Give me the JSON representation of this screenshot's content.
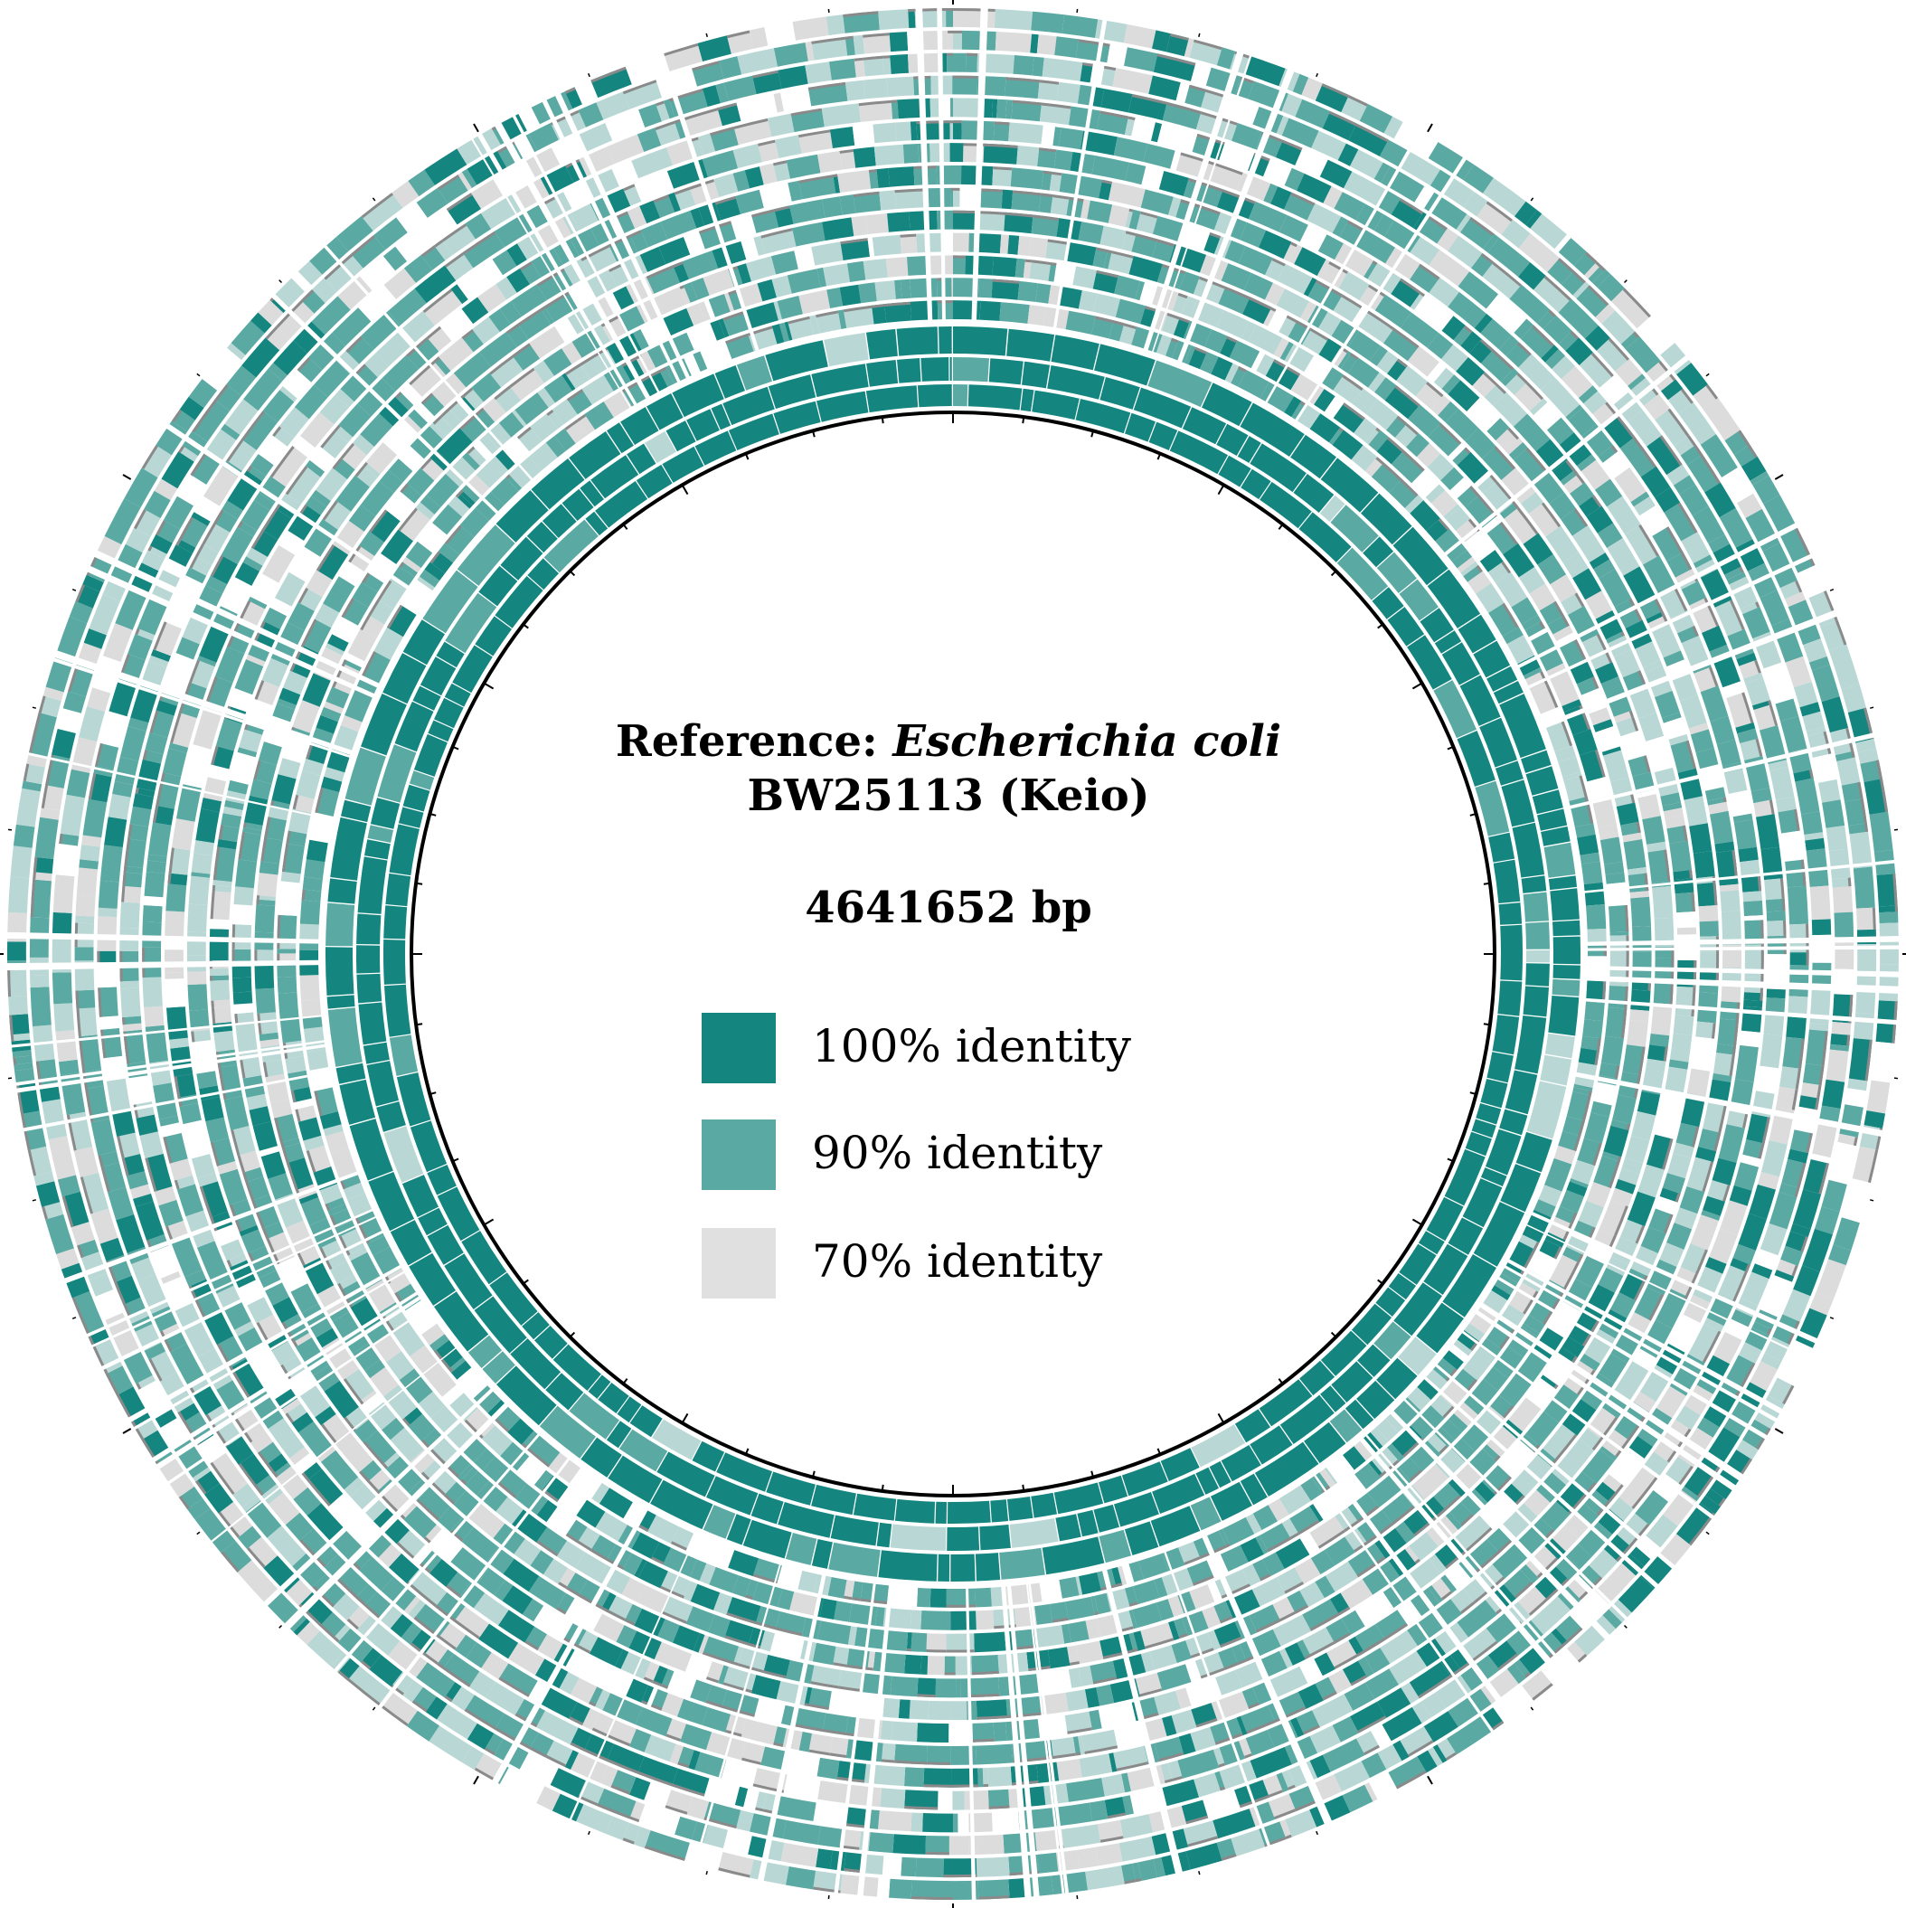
{
  "title": {
    "prefix": "Reference: ",
    "organism": "Escherichia coli",
    "strain": "BW25113 (Keio)"
  },
  "genome_length": "4641652 bp",
  "legend": [
    {
      "label": "100% identity",
      "color": "#14857f"
    },
    {
      "label": "90% identity",
      "color": "#5ba9a3"
    },
    {
      "label": "70% identity",
      "color": "#e0e0e0"
    }
  ],
  "colors": {
    "backbone": "#000000",
    "high": "#14857f",
    "mid": "#5ba9a3",
    "low": "#b9d8d5",
    "faint": "#dcdcdc",
    "gap": "#ffffff",
    "shadow": "#8a8a8a"
  },
  "rings": {
    "inner_solid_count": 3,
    "outer_count": 14
  }
}
